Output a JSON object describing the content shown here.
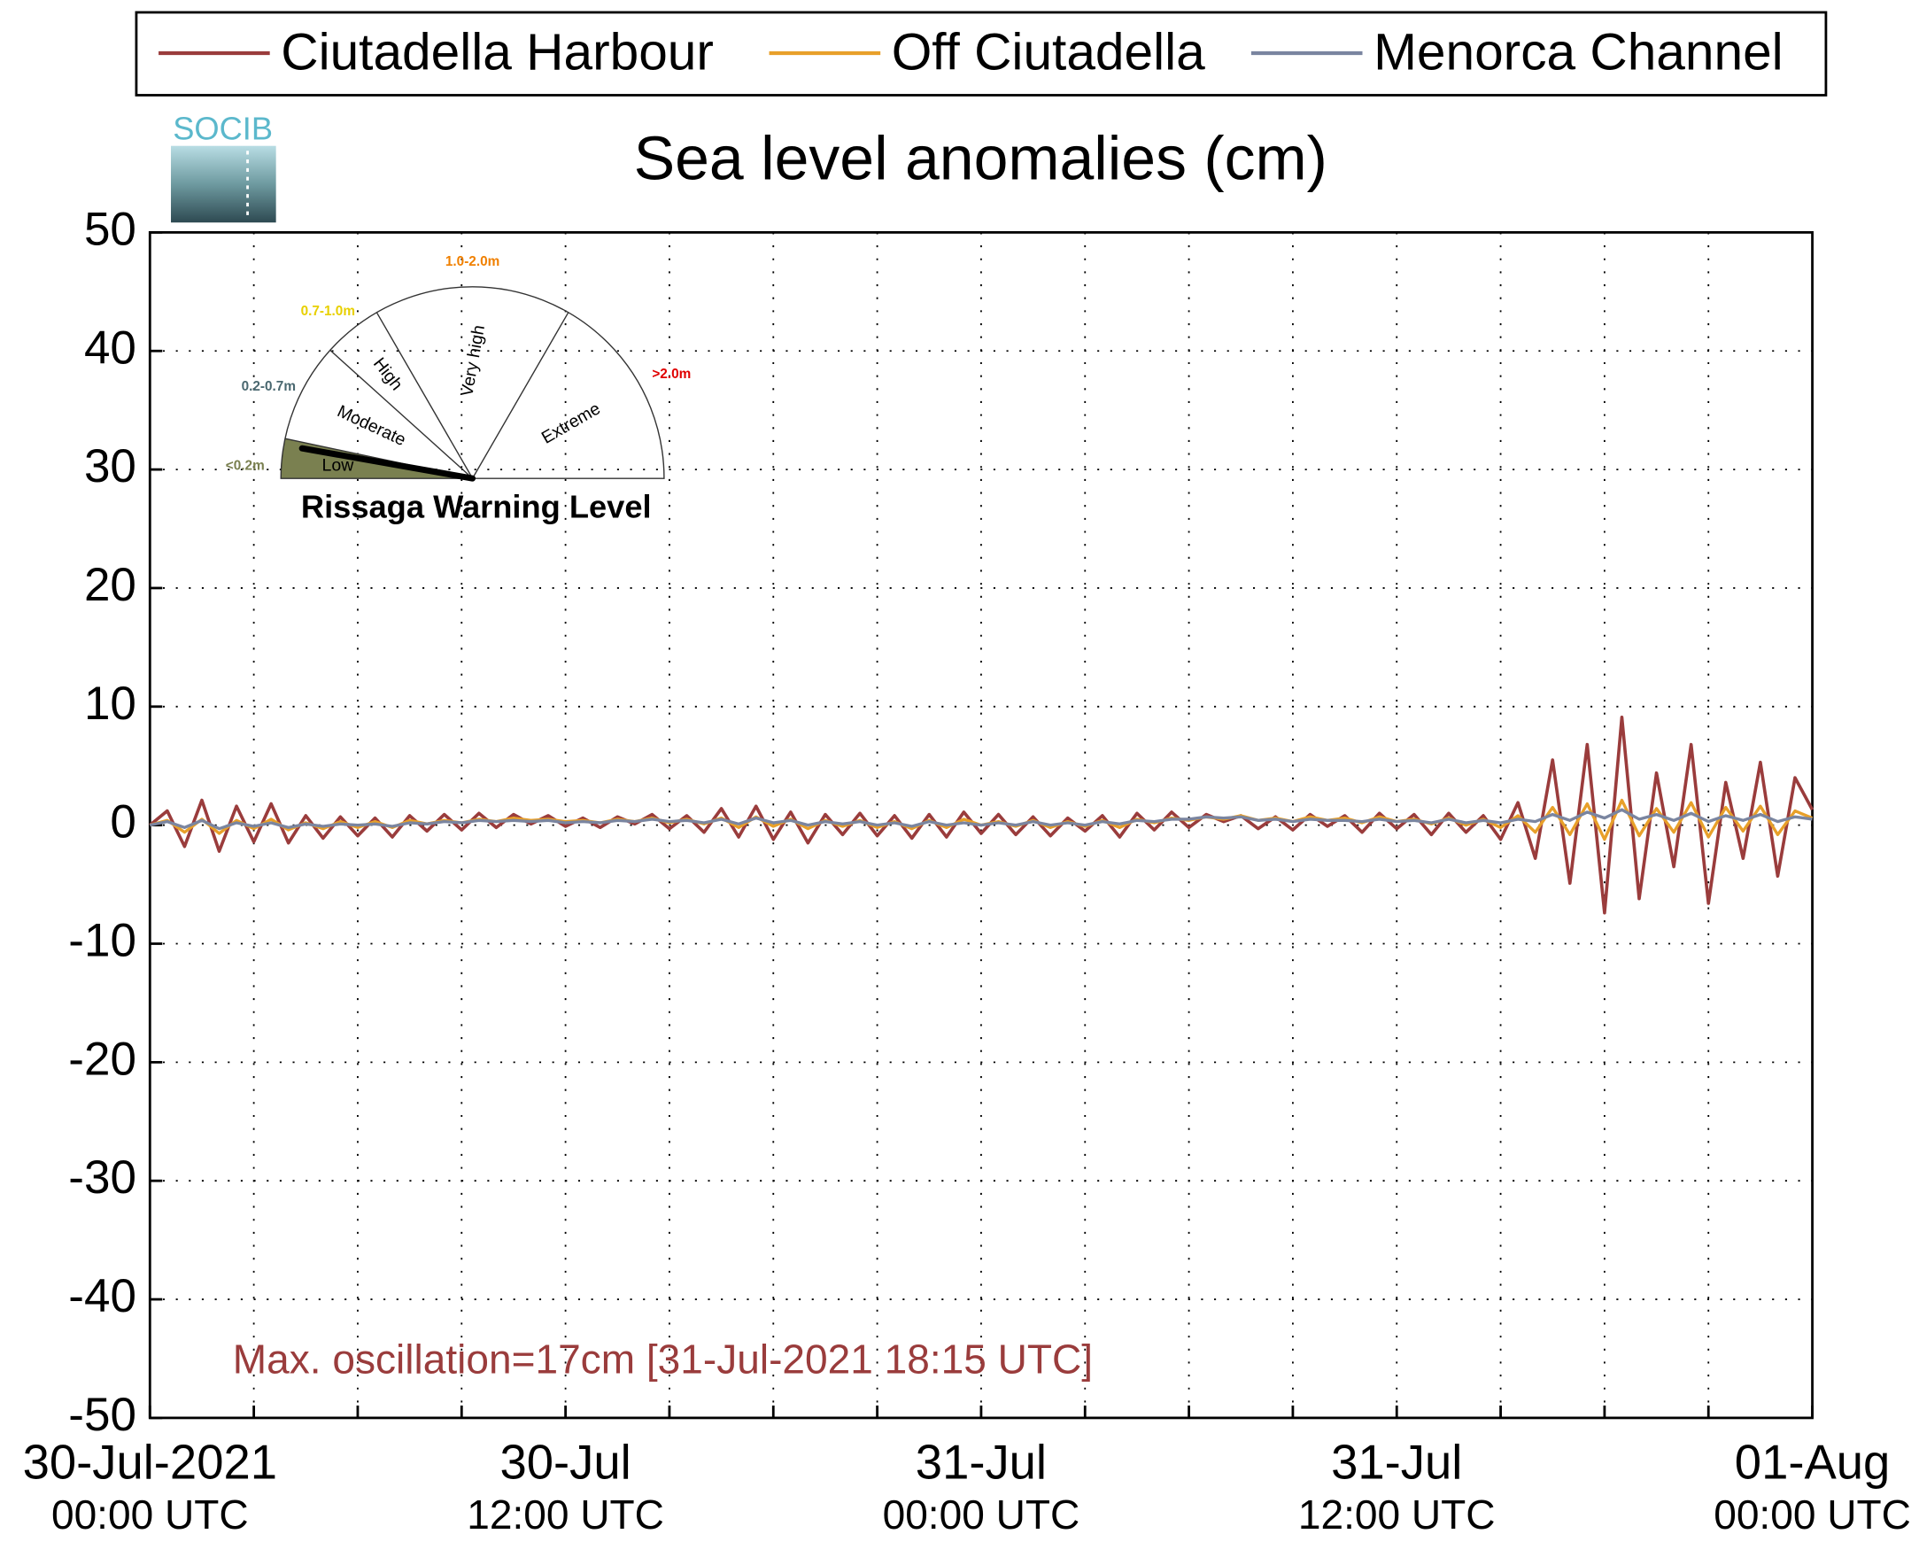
{
  "chart_data": {
    "type": "line",
    "title": "Sea level anomalies (cm)",
    "logo": "SOCIB",
    "annotation": "Max. oscillation=17cm [31-Jul-2021 18:15 UTC]",
    "x": [
      0,
      0.5,
      1,
      1.5,
      2,
      2.5,
      3,
      3.5,
      4,
      4.5,
      5,
      5.5,
      6,
      6.5,
      7,
      7.5,
      8,
      8.5,
      9,
      9.5,
      10,
      10.5,
      11,
      11.5,
      12,
      12.5,
      13,
      13.5,
      14,
      14.5,
      15,
      15.5,
      16,
      16.5,
      17,
      17.5,
      18,
      18.5,
      19,
      19.5,
      20,
      20.5,
      21,
      21.5,
      22,
      22.5,
      23,
      23.5,
      24,
      24.5,
      25,
      25.5,
      26,
      26.5,
      27,
      27.5,
      28,
      28.5,
      29,
      29.5,
      30,
      30.5,
      31,
      31.5,
      32,
      32.5,
      33,
      33.5,
      34,
      34.5,
      35,
      35.5,
      36,
      36.5,
      37,
      37.5,
      38,
      38.5,
      39,
      39.5,
      40,
      40.5,
      41,
      41.5,
      42,
      42.5,
      43,
      43.5,
      44,
      44.5,
      45,
      45.5,
      46,
      46.5,
      47,
      47.5,
      48
    ],
    "series": [
      {
        "name": "Ciutadella Harbour",
        "color": "#9a3c3c",
        "values": [
          0,
          1.2,
          -1.8,
          2.1,
          -2.2,
          1.6,
          -1.4,
          1.8,
          -1.5,
          0.8,
          -1.1,
          0.7,
          -0.9,
          0.6,
          -1.0,
          0.8,
          -0.5,
          0.9,
          -0.4,
          1.0,
          -0.2,
          0.9,
          0.1,
          0.8,
          -0.1,
          0.6,
          -0.2,
          0.7,
          0.1,
          0.9,
          -0.3,
          0.8,
          -0.6,
          1.4,
          -1.0,
          1.6,
          -1.2,
          1.1,
          -1.5,
          0.9,
          -0.8,
          1.0,
          -0.9,
          0.8,
          -1.1,
          0.9,
          -1.0,
          1.1,
          -0.7,
          0.9,
          -0.8,
          0.7,
          -0.9,
          0.6,
          -0.5,
          0.8,
          -1.0,
          1.0,
          -0.4,
          1.1,
          -0.2,
          0.9,
          0.3,
          0.8,
          -0.3,
          0.7,
          -0.4,
          0.9,
          -0.1,
          0.8,
          -0.6,
          1.0,
          -0.3,
          0.9,
          -0.8,
          1.0,
          -0.6,
          0.8,
          -1.2,
          1.9,
          -2.8,
          5.5,
          -4.9,
          6.8,
          -7.4,
          9.1,
          -6.2,
          4.4,
          -3.5,
          6.8,
          -6.6,
          3.6,
          -2.8,
          5.3,
          -4.3,
          4.0,
          1.3
        ]
      },
      {
        "name": "Off Ciutadella",
        "color": "#e8a02a",
        "values": [
          0,
          0.4,
          -0.6,
          0.5,
          -0.7,
          0.4,
          -0.3,
          0.5,
          -0.4,
          0.2,
          -0.3,
          0.3,
          -0.2,
          0.3,
          -0.2,
          0.4,
          0.1,
          0.4,
          0.2,
          0.5,
          0.3,
          0.6,
          0.4,
          0.5,
          0.3,
          0.4,
          0.2,
          0.5,
          0.3,
          0.6,
          0.2,
          0.5,
          0.1,
          0.6,
          -0.2,
          0.7,
          -0.1,
          0.5,
          -0.3,
          0.4,
          -0.1,
          0.4,
          -0.2,
          0.3,
          -0.3,
          0.4,
          -0.2,
          0.5,
          0,
          0.3,
          -0.1,
          0.4,
          -0.2,
          0.3,
          -0.1,
          0.4,
          -0.2,
          0.5,
          0.2,
          0.6,
          0.4,
          0.7,
          0.5,
          0.8,
          0.4,
          0.6,
          0.3,
          0.7,
          0.4,
          0.6,
          0.2,
          0.7,
          0.3,
          0.5,
          0.1,
          0.6,
          0.0,
          0.5,
          -0.2,
          0.8,
          -0.6,
          1.5,
          -0.8,
          1.8,
          -1.2,
          2.1,
          -0.9,
          1.4,
          -0.6,
          1.9,
          -1.0,
          1.5,
          -0.5,
          1.6,
          -0.8,
          1.2,
          0.6
        ]
      },
      {
        "name": "Menorca Channel",
        "color": "#7a85a0",
        "values": [
          0,
          0.3,
          -0.2,
          0.4,
          -0.3,
          0.2,
          -0.1,
          0.2,
          -0.2,
          0.1,
          -0.1,
          0.1,
          0,
          0.1,
          -0.1,
          0.2,
          0.1,
          0.3,
          0.2,
          0.4,
          0.3,
          0.4,
          0.3,
          0.4,
          0.2,
          0.3,
          0.2,
          0.4,
          0.3,
          0.5,
          0.3,
          0.4,
          0.2,
          0.5,
          0.1,
          0.6,
          0.2,
          0.4,
          0,
          0.3,
          0.1,
          0.3,
          0,
          0.2,
          -0.1,
          0.3,
          0,
          0.2,
          0,
          0.2,
          0,
          0.3,
          0,
          0.2,
          0,
          0.3,
          0.1,
          0.4,
          0.3,
          0.5,
          0.5,
          0.7,
          0.6,
          0.7,
          0.4,
          0.5,
          0.3,
          0.5,
          0.4,
          0.4,
          0.3,
          0.5,
          0.3,
          0.4,
          0.2,
          0.5,
          0.2,
          0.4,
          0.2,
          0.5,
          0.3,
          0.9,
          0.4,
          1.1,
          0.6,
          1.3,
          0.5,
          0.9,
          0.4,
          1.0,
          0.3,
          0.8,
          0.4,
          0.9,
          0.3,
          0.7,
          0.5
        ]
      }
    ],
    "xlim": [
      0,
      48
    ],
    "xticks": [
      {
        "value": 0,
        "label": [
          "30-Jul-2021",
          "00:00 UTC"
        ]
      },
      {
        "value": 12,
        "label": [
          "30-Jul",
          "12:00 UTC"
        ]
      },
      {
        "value": 24,
        "label": [
          "31-Jul",
          "00:00 UTC"
        ]
      },
      {
        "value": 36,
        "label": [
          "31-Jul",
          "12:00 UTC"
        ]
      },
      {
        "value": 48,
        "label": [
          "01-Aug",
          "00:00 UTC"
        ]
      }
    ],
    "xminor_ticks": [
      3,
      6,
      9,
      15,
      18,
      21,
      27,
      30,
      33,
      39,
      42,
      45
    ],
    "ylim": [
      -50,
      50
    ],
    "yticks": [
      50,
      40,
      30,
      20,
      10,
      0,
      -10,
      -20,
      -30,
      -40,
      -50
    ],
    "grid": true,
    "legend": "top",
    "gauge": {
      "title": "Rissaga Warning Level",
      "levels": [
        {
          "name": "Low",
          "range": "<0.2m",
          "color": "#7a8050"
        },
        {
          "name": "Moderate",
          "range": "0.2-0.7m",
          "color": "#4a6870"
        },
        {
          "name": "High",
          "range": "0.7-1.0m",
          "color": "#e8d000"
        },
        {
          "name": "Very high",
          "range": "1.0-2.0m",
          "color": "#f08000"
        },
        {
          "name": "Extreme",
          "range": ">2.0m",
          "color": "#e00000"
        }
      ]
    }
  }
}
